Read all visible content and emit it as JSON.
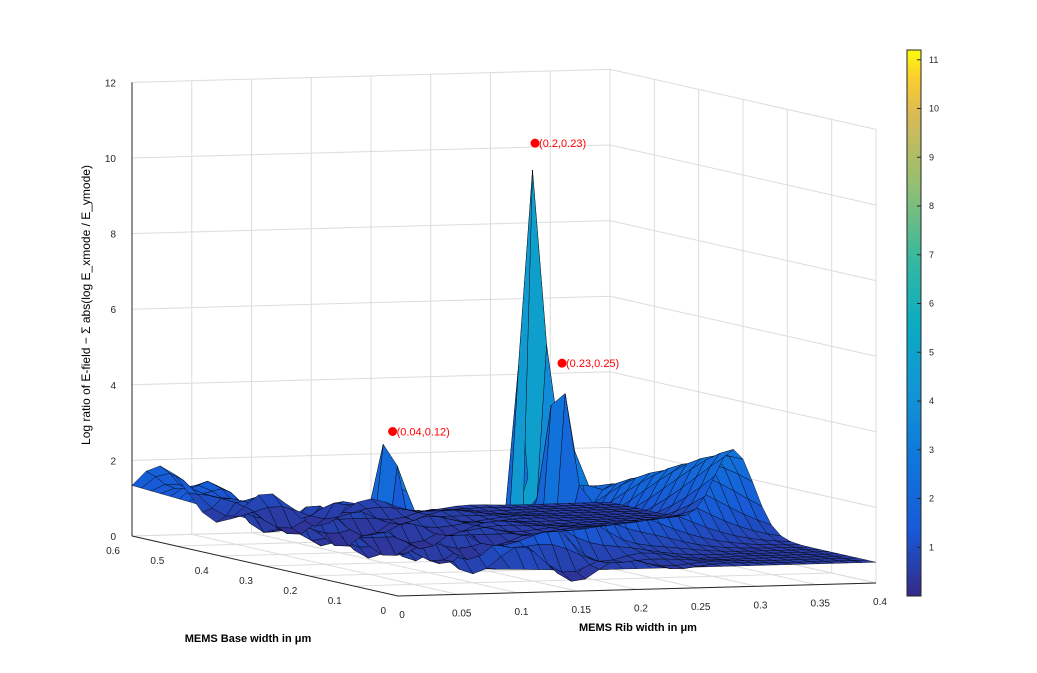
{
  "chart_data": {
    "type": "surface",
    "xlabel": "MEMS Rib width in μm",
    "ylabel": "MEMS Base width in μm",
    "zlabel": "Log ratio of E-field − Σ abs(log E_xmode / E_ymode)",
    "xlim": [
      0,
      0.4
    ],
    "ylim": [
      0,
      0.6
    ],
    "zlim": [
      0,
      12
    ],
    "x_ticks": [
      "0",
      "0.05",
      "0.1",
      "0.15",
      "0.2",
      "0.25",
      "0.3",
      "0.35",
      "0.4"
    ],
    "y_ticks": [
      "0",
      "0.1",
      "0.2",
      "0.3",
      "0.4",
      "0.5",
      "0.6"
    ],
    "z_ticks": [
      "0",
      "2",
      "4",
      "6",
      "8",
      "10",
      "12"
    ],
    "colorbar": {
      "colormap": "parula",
      "range": [
        0,
        11.2
      ],
      "ticks": [
        "1",
        "2",
        "3",
        "4",
        "5",
        "6",
        "7",
        "8",
        "9",
        "10",
        "11"
      ]
    },
    "grid": true,
    "annotations": [
      {
        "label": "(0.2,0.23)",
        "x": 0.2,
        "y": 0.23,
        "z": 11.2
      },
      {
        "label": "(0.23,0.25)",
        "x": 0.23,
        "y": 0.25,
        "z": 5.3
      },
      {
        "label": "(0.04,0.12)",
        "x": 0.04,
        "y": 0.12,
        "z": 4.0
      }
    ]
  }
}
